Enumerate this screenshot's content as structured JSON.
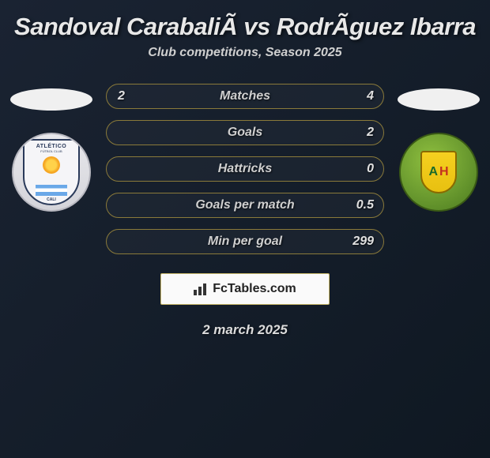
{
  "header": {
    "title": "Sandoval CarabaliÃ vs RodrÃ­guez Ibarra",
    "subtitle": "Club competitions, Season 2025"
  },
  "left_club": {
    "name": "Atlético Cali",
    "shield_top": "ATLÉTICO",
    "shield_sub": "FÚTBOL CLUB",
    "shield_city": "CALI"
  },
  "right_club": {
    "name": "Atlético Huila",
    "letters": [
      "A",
      "H"
    ]
  },
  "stats": {
    "type": "comparison-bars",
    "bar_border_color": "#8a7a3a",
    "bar_bg": "rgba(40,50,60,0.35)",
    "text_color": "#cfcfcf",
    "value_color": "#e0e0e0",
    "font_style": "italic",
    "font_weight": 800,
    "label_fontsize": 16,
    "rows": [
      {
        "label": "Matches",
        "left": "2",
        "right": "4"
      },
      {
        "label": "Goals",
        "left": "",
        "right": "2"
      },
      {
        "label": "Hattricks",
        "left": "",
        "right": "0"
      },
      {
        "label": "Goals per match",
        "left": "",
        "right": "0.5"
      },
      {
        "label": "Min per goal",
        "left": "",
        "right": "299"
      }
    ]
  },
  "watermark": {
    "text": "FcTables.com"
  },
  "footer": {
    "date": "2 march 2025"
  },
  "colors": {
    "page_bg_from": "#1a2332",
    "page_bg_to": "#0f1822",
    "title_color": "#e8e8e8",
    "subtitle_color": "#d0d0d0",
    "watermark_bg": "#fafafa",
    "watermark_border": "#c8b86a"
  }
}
